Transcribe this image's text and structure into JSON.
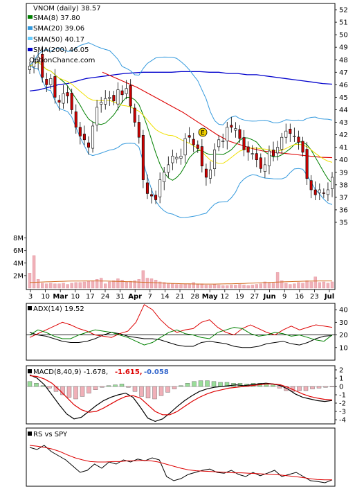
{
  "header": {
    "ticker_line": "VNOM (daily) 38.57",
    "sma8": "SMA(8) 37.80",
    "sma20": "SMA(20) 39.06",
    "sma50": "SMA(50) 40.17",
    "sma200": "SMA(200) 46.05",
    "watermark": "OptionChance.com"
  },
  "earnings_marker": "E",
  "price_axis_labels": [
    "52",
    "51",
    "50",
    "49",
    "48",
    "47",
    "46",
    "45",
    "44",
    "43",
    "42",
    "41",
    "40",
    "39",
    "38",
    "37",
    "36",
    "35"
  ],
  "volume_axis_labels": [
    "8M",
    "6M",
    "4M",
    "2M"
  ],
  "date_labels": [
    "3",
    "10",
    "Mar",
    "10",
    "17",
    "24",
    "31",
    "Apr",
    "7",
    "14",
    "21",
    "28",
    "May",
    "12",
    "19",
    "27",
    "Jun",
    "9",
    "16",
    "23",
    "Jul"
  ],
  "adx": {
    "label": "ADX(14) 19.52",
    "axis": [
      "40",
      "30",
      "20",
      "10"
    ]
  },
  "macd": {
    "label": "MACD(8,40,9) -1.678,",
    "val1": "-1.615,",
    "val2": "-0.058",
    "axis": [
      "2",
      "1",
      "0",
      "-1",
      "-2",
      "-3",
      "-4"
    ]
  },
  "rs": {
    "label": "RS vs SPY"
  },
  "colors": {
    "sma8": "#008000",
    "sma20": "#3399dd",
    "sma50": "#66ccff",
    "sma200": "#0000cc",
    "bollinger": "#3399dd",
    "sma50_line": "#dd0000",
    "up": "#ffffff",
    "down": "#cc0000",
    "volume": "#f0b0b8",
    "macd_pos": "#99dd99",
    "macd_neg": "#f0b0b8"
  },
  "chart_data": [
    {
      "type": "candlestick",
      "title": "VNOM (daily) 38.57",
      "ylim": [
        34.5,
        52.5
      ],
      "closes": [
        47.5,
        47.8,
        48.2,
        46.6,
        46.0,
        46.5,
        45.0,
        44.6,
        45.3,
        45.1,
        44.0,
        42.6,
        41.9,
        41.6,
        41.0,
        42.7,
        44.2,
        44.6,
        44.9,
        45.0,
        44.7,
        45.6,
        45.2,
        45.7,
        44.3,
        43.0,
        41.8,
        38.4,
        37.3,
        37.1,
        36.8,
        38.4,
        39.0,
        39.6,
        40.3,
        40.2,
        40.3,
        41.7,
        41.8,
        41.2,
        40.9,
        39.5,
        38.6,
        39.2,
        40.8,
        41.6,
        41.5,
        42.6,
        42.6,
        42.5,
        41.7,
        40.8,
        40.6,
        40.5,
        40.0,
        39.3,
        39.6,
        40.7,
        40.3,
        41.0,
        41.8,
        42.3,
        42.1,
        41.9,
        41.4,
        40.6,
        38.5,
        37.6,
        37.2,
        37.6,
        37.3,
        37.6,
        38.6
      ],
      "volumes_M": [
        2.4,
        5.2,
        1.4,
        0.8,
        0.7,
        0.8,
        0.7,
        0.7,
        0.8,
        0.6,
        0.8,
        0.9,
        0.9,
        1.0,
        1.1,
        1.2,
        1.4,
        1.6,
        0.7,
        1.0,
        1.2,
        1.5,
        1.3,
        1.0,
        1.1,
        1.2,
        1.4,
        2.8,
        1.6,
        1.5,
        1.3,
        1.0,
        0.9,
        0.8,
        0.7,
        0.6,
        0.6,
        0.7,
        0.7,
        0.9,
        0.6,
        0.7,
        0.5,
        0.5,
        0.6,
        0.5,
        0.4,
        0.4,
        0.5,
        0.5,
        0.6,
        0.5,
        0.4,
        0.5,
        0.6,
        0.7,
        1.0,
        0.8,
        0.8,
        2.5,
        1.2,
        0.8,
        0.6,
        0.7,
        0.9,
        0.8,
        1.2,
        1.0,
        1.8,
        0.9,
        1.0,
        0.8,
        1.0
      ],
      "sma200": [
        45.5,
        45.6,
        45.8,
        46.0,
        46.1,
        46.3,
        46.5,
        46.6,
        46.7,
        46.8,
        46.9,
        46.95,
        47.0,
        47.0,
        47.0,
        47.0,
        47.05,
        47.05,
        47.05,
        47.0,
        47.0,
        46.9,
        46.9,
        46.8,
        46.8,
        46.7,
        46.6,
        46.5,
        46.4,
        46.3,
        46.2,
        46.1,
        46.05
      ],
      "sma50": [
        47.0,
        46.6,
        46.2,
        45.8,
        45.3,
        44.8,
        44.3,
        43.8,
        43.2,
        42.6,
        42.0,
        41.5,
        41.2,
        40.9,
        40.7,
        40.6,
        40.5,
        40.4,
        40.3,
        40.2,
        40.17
      ]
    },
    {
      "type": "line",
      "title": "ADX(14) 19.52",
      "ylim": [
        0,
        45
      ],
      "series": [
        {
          "name": "ADX(14)",
          "values": [
            22,
            20,
            19,
            17,
            15,
            14,
            14,
            15,
            17,
            20,
            22,
            21,
            19,
            18,
            17,
            17,
            16,
            14,
            12,
            11,
            11,
            14,
            15,
            14,
            13,
            11,
            10,
            10,
            11,
            13,
            14,
            15,
            13,
            12,
            14,
            17,
            19,
            19.5
          ]
        },
        {
          "name": "",
          "values": [
            18,
            21,
            24,
            27,
            30,
            28,
            25,
            23,
            20,
            19,
            18,
            21,
            23,
            30,
            44,
            40,
            32,
            26,
            22,
            24,
            25,
            30,
            32,
            26,
            22,
            20,
            25,
            28,
            25,
            22,
            20,
            24,
            27,
            24,
            26,
            28,
            27,
            26
          ]
        },
        {
          "name": "",
          "values": [
            20,
            24,
            22,
            19,
            17,
            17,
            20,
            22,
            24,
            23,
            22,
            20,
            18,
            15,
            12,
            14,
            18,
            22,
            24,
            21,
            20,
            18,
            17,
            22,
            24,
            26,
            25,
            21,
            19,
            20,
            22,
            21,
            19,
            20,
            18,
            16,
            15,
            20
          ]
        }
      ]
    },
    {
      "type": "bar",
      "title": "MACD(8,40,9) -1.678, -1.615, -0.058",
      "ylim": [
        -4.5,
        2.5
      ],
      "histogram": [
        0.6,
        0.4,
        0.1,
        -0.2,
        -0.6,
        -1.0,
        -1.3,
        -1.5,
        -1.2,
        -0.8,
        -0.4,
        -0.1,
        0.1,
        0.2,
        0.3,
        -0.1,
        -0.6,
        -1.2,
        -1.4,
        -1.5,
        -1.1,
        -0.7,
        -0.3,
        0.1,
        0.4,
        0.6,
        0.7,
        0.7,
        0.6,
        0.5,
        0.5,
        0.4,
        0.4,
        0.3,
        0.4,
        0.4,
        0.3,
        0.2,
        -0.2,
        -0.5,
        -0.6,
        -0.5,
        -0.5,
        -0.3,
        -0.2,
        -0.1,
        -0.06
      ],
      "series": [
        {
          "name": "MACD",
          "values": [
            1.4,
            1.0,
            0.2,
            -1.0,
            -2.2,
            -3.3,
            -3.9,
            -3.7,
            -3.0,
            -2.3,
            -1.7,
            -1.3,
            -1.0,
            -0.8,
            -1.3,
            -2.5,
            -3.8,
            -4.2,
            -3.9,
            -3.2,
            -2.4,
            -1.7,
            -1.1,
            -0.6,
            -0.3,
            -0.1,
            0.0,
            0.1,
            0.2,
            0.1,
            0.2,
            0.3,
            0.4,
            0.3,
            0.1,
            -0.3,
            -0.9,
            -1.3,
            -1.5,
            -1.7,
            -1.8,
            -1.68
          ]
        },
        {
          "name": "Signal",
          "values": [
            1.3,
            1.2,
            0.9,
            0.4,
            -0.4,
            -1.3,
            -2.2,
            -2.8,
            -3.1,
            -3.0,
            -2.6,
            -2.1,
            -1.6,
            -1.2,
            -1.1,
            -1.4,
            -2.2,
            -3.0,
            -3.4,
            -3.4,
            -3.0,
            -2.4,
            -1.8,
            -1.3,
            -0.9,
            -0.6,
            -0.4,
            -0.2,
            -0.1,
            0.0,
            0.1,
            0.2,
            0.3,
            0.3,
            0.2,
            -0.1,
            -0.5,
            -0.9,
            -1.2,
            -1.4,
            -1.55,
            -1.615
          ]
        }
      ]
    },
    {
      "type": "line",
      "title": "RS vs SPY",
      "series": [
        {
          "name": "RS vs SPY",
          "values": [
            0.9,
            0.85,
            0.95,
            0.8,
            0.7,
            0.6,
            0.45,
            0.3,
            0.35,
            0.5,
            0.4,
            0.55,
            0.5,
            0.6,
            0.55,
            0.62,
            0.58,
            0.65,
            0.6,
            0.2,
            0.1,
            0.15,
            0.25,
            0.3,
            0.35,
            0.38,
            0.3,
            0.28,
            0.35,
            0.25,
            0.2,
            0.3,
            0.22,
            0.28,
            0.35,
            0.2,
            0.25,
            0.3,
            0.2,
            0.1,
            0.08,
            0.05,
            0.12
          ]
        },
        {
          "name": "",
          "values": [
            0.95,
            0.93,
            0.9,
            0.86,
            0.8,
            0.72,
            0.65,
            0.6,
            0.56,
            0.55,
            0.55,
            0.56,
            0.56,
            0.58,
            0.58,
            0.59,
            0.58,
            0.55,
            0.5,
            0.45,
            0.4,
            0.36,
            0.34,
            0.33,
            0.32,
            0.31,
            0.3,
            0.29,
            0.29,
            0.28,
            0.27,
            0.26,
            0.25,
            0.24,
            0.22,
            0.2,
            0.18,
            0.15,
            0.13,
            0.12,
            0.12
          ]
        }
      ]
    }
  ]
}
